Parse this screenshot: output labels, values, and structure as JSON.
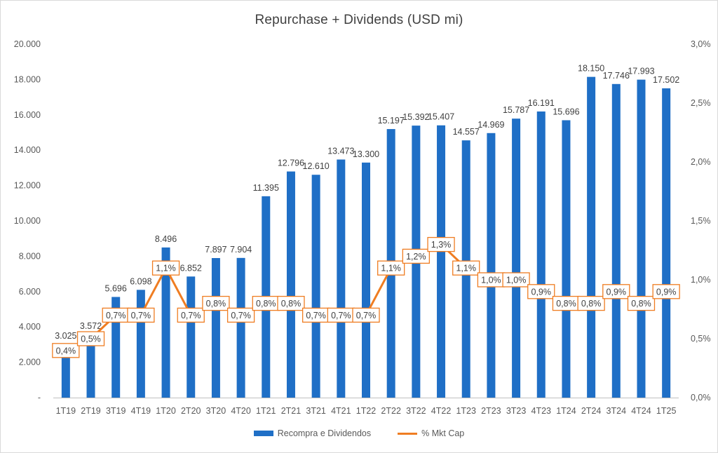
{
  "chart_data": {
    "type": "bar",
    "title": "Repurchase + Dividends (USD mi)",
    "categories": [
      "1T19",
      "2T19",
      "3T19",
      "4T19",
      "1T20",
      "2T20",
      "3T20",
      "4T20",
      "1T21",
      "2T21",
      "3T21",
      "4T21",
      "1T22",
      "2T22",
      "3T22",
      "4T22",
      "1T23",
      "2T23",
      "3T23",
      "4T23",
      "1T24",
      "2T24",
      "3T24",
      "4T24",
      "1T25"
    ],
    "series": [
      {
        "name": "Recompra e Dividendos",
        "type": "bar",
        "axis": "left",
        "color": "#1f6fc6",
        "values": [
          3025,
          3572,
          5696,
          6098,
          8496,
          6852,
          7897,
          7904,
          11395,
          12796,
          12610,
          13473,
          13300,
          15197,
          15392,
          15407,
          14557,
          14969,
          15787,
          16191,
          15696,
          18150,
          17746,
          17993,
          17502
        ],
        "labels": [
          "3.025",
          "3.572",
          "5.696",
          "6.098",
          "8.496",
          "6.852",
          "7.897",
          "7.904",
          "11.395",
          "12.796",
          "12.610",
          "13.473",
          "13.300",
          "15.197",
          "15.392",
          "15.407",
          "14.557",
          "14.969",
          "15.787",
          "16.191",
          "15.696",
          "18.150",
          "17.746",
          "17.993",
          "17.502"
        ]
      },
      {
        "name": "% Mkt Cap",
        "type": "line",
        "axis": "right",
        "color": "#ef7d22",
        "values": [
          0.4,
          0.5,
          0.7,
          0.7,
          1.1,
          0.7,
          0.8,
          0.7,
          0.8,
          0.8,
          0.7,
          0.7,
          0.7,
          1.1,
          1.2,
          1.3,
          1.1,
          1.0,
          1.0,
          0.9,
          0.8,
          0.8,
          0.9,
          0.8,
          0.9
        ],
        "labels": [
          "0,4%",
          "0,5%",
          "0,7%",
          "0,7%",
          "1,1%",
          "0,7%",
          "0,8%",
          "0,7%",
          "0,8%",
          "0,8%",
          "0,7%",
          "0,7%",
          "0,7%",
          "1,1%",
          "1,2%",
          "1,3%",
          "1,1%",
          "1,0%",
          "1,0%",
          "0,9%",
          "0,8%",
          "0,8%",
          "0,9%",
          "0,8%",
          "0,9%"
        ]
      }
    ],
    "y_left": {
      "ylim": [
        0,
        20000
      ],
      "ticks": [
        0,
        2000,
        4000,
        6000,
        8000,
        10000,
        12000,
        14000,
        16000,
        18000,
        20000
      ],
      "tick_labels": [
        "-",
        "2.000",
        "4.000",
        "6.000",
        "8.000",
        "10.000",
        "12.000",
        "14.000",
        "16.000",
        "18.000",
        "20.000"
      ]
    },
    "y_right": {
      "ylim": [
        0,
        3.0
      ],
      "ticks": [
        0,
        0.5,
        1.0,
        1.5,
        2.0,
        2.5,
        3.0
      ],
      "tick_labels": [
        "0,0%",
        "0,5%",
        "1,0%",
        "1,5%",
        "2,0%",
        "2,5%",
        "3,0%"
      ]
    },
    "grid": false,
    "legend_position": "bottom"
  }
}
